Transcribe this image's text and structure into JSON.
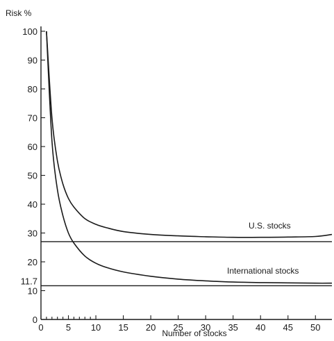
{
  "chart_data": {
    "type": "line",
    "title": "",
    "ylabel": "Risk %",
    "xlabel": "Number of stocks",
    "xlim": [
      0,
      53
    ],
    "ylim": [
      0,
      100
    ],
    "x_ticks": [
      0,
      5,
      10,
      15,
      20,
      25,
      30,
      35,
      40,
      45,
      50
    ],
    "y_ticks": [
      0,
      10,
      20,
      30,
      40,
      50,
      60,
      70,
      80,
      90,
      100
    ],
    "extra_y_tick": 11.7,
    "grid": false,
    "series": [
      {
        "name": "U.S. stocks",
        "x": [
          1,
          2,
          3,
          4,
          5,
          6,
          8,
          10,
          12,
          15,
          20,
          25,
          30,
          35,
          40,
          45,
          50,
          53
        ],
        "y": [
          100,
          70,
          55,
          47,
          42,
          39,
          35,
          33,
          31.8,
          30.5,
          29.5,
          29,
          28.7,
          28.5,
          28.5,
          28.6,
          28.8,
          29.5
        ]
      },
      {
        "name": "International stocks",
        "x": [
          1,
          2,
          3,
          4,
          5,
          6,
          8,
          10,
          12,
          15,
          20,
          25,
          30,
          35,
          40,
          45,
          50,
          53
        ],
        "y": [
          100,
          62,
          45,
          36,
          30,
          26.5,
          22,
          19.5,
          18,
          16.5,
          15,
          14,
          13.4,
          13,
          12.8,
          12.7,
          12.6,
          12.6
        ]
      }
    ],
    "reference_lines": [
      {
        "series": "U.S. stocks",
        "y": 27
      },
      {
        "series": "International stocks",
        "y": 11.7
      }
    ]
  }
}
